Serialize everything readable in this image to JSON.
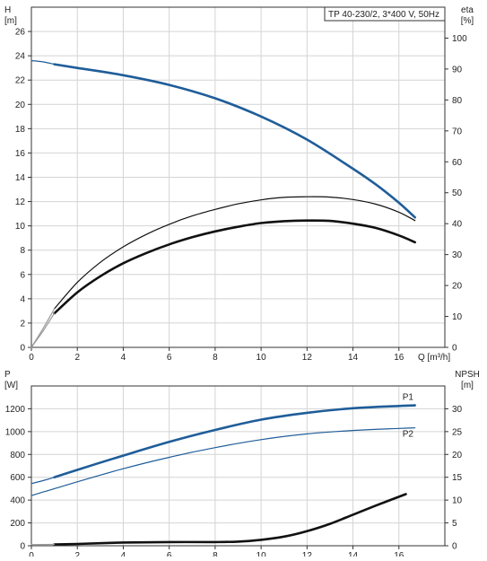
{
  "chart_data": [
    {
      "type": "line",
      "subplot": "head-efficiency",
      "title": "TP 40-230/2, 3*400 V, 50Hz",
      "x_axis": {
        "label": "Q [m³/h]",
        "range": [
          0,
          18
        ],
        "ticks": [
          0,
          2,
          4,
          6,
          8,
          10,
          12,
          14,
          16
        ]
      },
      "y_left": {
        "label_top": "H",
        "label_unit": "[m]",
        "range": [
          0,
          28
        ],
        "ticks": [
          0,
          2,
          4,
          6,
          8,
          10,
          12,
          14,
          16,
          18,
          20,
          22,
          24,
          26
        ]
      },
      "y_right": {
        "label_top": "eta",
        "label_unit": "[%]",
        "range": [
          0,
          110
        ],
        "ticks": [
          0,
          10,
          20,
          30,
          40,
          50,
          60,
          70,
          80,
          90,
          100
        ]
      },
      "grid": true,
      "series": [
        {
          "axis": "left",
          "color": "#1f5d99",
          "style": "thick",
          "x": [
            1.0,
            2,
            4,
            6,
            8,
            10,
            12,
            14,
            15,
            16,
            16.7
          ],
          "y": [
            23.3,
            23.0,
            22.4,
            21.6,
            20.5,
            19.0,
            17.1,
            14.7,
            13.4,
            11.9,
            10.7
          ]
        },
        {
          "axis": "left",
          "color": "#1f5d99",
          "style": "thin",
          "x": [
            0,
            0.5,
            1.0
          ],
          "y": [
            23.6,
            23.5,
            23.3
          ]
        },
        {
          "axis": "right",
          "color": "#111111",
          "style": "thin",
          "x": [
            1.0,
            2,
            3,
            4,
            5,
            6,
            7,
            8,
            9,
            10,
            11,
            12,
            13,
            14,
            15,
            16,
            16.7
          ],
          "y": [
            12.5,
            21.0,
            27.5,
            32.5,
            36.5,
            39.8,
            42.5,
            44.6,
            46.4,
            47.7,
            48.5,
            48.7,
            48.6,
            47.8,
            46.3,
            43.7,
            41.0
          ]
        },
        {
          "axis": "right",
          "color": "#111111",
          "style": "thick",
          "x": [
            1.0,
            2,
            3,
            4,
            5,
            6,
            7,
            8,
            9,
            10,
            11,
            12,
            13,
            14,
            15,
            16,
            16.7
          ],
          "y": [
            11.0,
            17.8,
            23.0,
            27.2,
            30.5,
            33.3,
            35.6,
            37.5,
            39.0,
            40.2,
            40.8,
            41.0,
            40.9,
            40.0,
            38.6,
            36.2,
            34.0
          ]
        },
        {
          "axis": "right",
          "color": "#9a9a9a",
          "style": "thin",
          "x": [
            0,
            0.5,
            1.0
          ],
          "y": [
            0,
            6.0,
            12.5
          ]
        },
        {
          "axis": "right",
          "color": "#9a9a9a",
          "style": "thin",
          "x": [
            0,
            0.5,
            1.0
          ],
          "y": [
            0,
            5.2,
            11.0
          ]
        }
      ]
    },
    {
      "type": "line",
      "subplot": "power-npsh",
      "x_axis": {
        "label": "",
        "range": [
          0,
          18
        ],
        "ticks": [
          0,
          2,
          4,
          6,
          8,
          10,
          12,
          14,
          16
        ]
      },
      "y_left": {
        "label_top": "P",
        "label_unit": "[W]",
        "range": [
          0,
          1400
        ],
        "ticks": [
          0,
          200,
          400,
          600,
          800,
          1000,
          1200
        ]
      },
      "y_right": {
        "label_top": "NPSH",
        "label_unit": "[m]",
        "range": [
          0,
          35
        ],
        "ticks": [
          0,
          5,
          10,
          15,
          20,
          25,
          30
        ]
      },
      "grid": true,
      "series": [
        {
          "name": "P1",
          "axis": "left",
          "color": "#1f5d99",
          "style": "thick",
          "x": [
            1.0,
            2,
            4,
            6,
            8,
            10,
            12,
            14,
            16,
            16.7
          ],
          "y": [
            600,
            665,
            790,
            910,
            1015,
            1105,
            1165,
            1205,
            1225,
            1230
          ]
        },
        {
          "name": "P2",
          "axis": "left",
          "color": "#1f5d99",
          "style": "thin",
          "x": [
            1.0,
            2,
            4,
            6,
            8,
            10,
            12,
            14,
            16,
            16.7
          ],
          "y": [
            500,
            560,
            675,
            775,
            860,
            930,
            980,
            1010,
            1028,
            1033
          ]
        },
        {
          "axis": "left",
          "color": "#1f5d99",
          "style": "thin",
          "x": [
            0,
            0.5,
            1.0
          ],
          "y": [
            545,
            570,
            600
          ]
        },
        {
          "axis": "left",
          "color": "#1f5d99",
          "style": "thin",
          "x": [
            0,
            0.5,
            1.0
          ],
          "y": [
            440,
            470,
            500
          ]
        },
        {
          "axis": "right",
          "color": "#111111",
          "style": "thick",
          "x": [
            1.0,
            2,
            4,
            6,
            8,
            9,
            10,
            11,
            12,
            13,
            14,
            15,
            16.3
          ],
          "y": [
            0.3,
            0.4,
            0.7,
            0.8,
            0.8,
            0.9,
            1.3,
            2.0,
            3.2,
            4.8,
            6.8,
            8.8,
            11.3
          ]
        },
        {
          "axis": "right",
          "color": "#9a9a9a",
          "style": "thin",
          "x": [
            0,
            1.0
          ],
          "y": [
            0.25,
            0.3
          ]
        }
      ]
    }
  ]
}
